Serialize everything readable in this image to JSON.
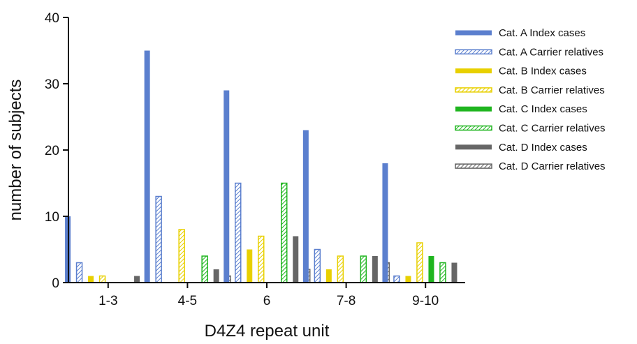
{
  "chart_data": {
    "type": "bar",
    "categories": [
      "1-3",
      "4-5",
      "6",
      "7-8",
      "9-10"
    ],
    "xlabel": "D4Z4 repeat unit",
    "ylabel": "number of subjects",
    "ylim": [
      0,
      40
    ],
    "yticks": [
      0,
      10,
      20,
      30,
      40
    ],
    "grid": false,
    "legend_position": "top-right",
    "series": [
      {
        "name": "Cat. A Index cases",
        "color": "#5b7fce",
        "pattern": "solid",
        "values": [
          10,
          35,
          29,
          23,
          18
        ]
      },
      {
        "name": "Cat. A Carrier relatives",
        "color": "#5b7fce",
        "pattern": "hatched",
        "values": [
          3,
          13,
          15,
          5,
          1
        ]
      },
      {
        "name": "Cat. B Index cases",
        "color": "#e8d000",
        "pattern": "solid",
        "values": [
          1,
          0,
          5,
          2,
          1
        ]
      },
      {
        "name": "Cat. B Carrier relatives",
        "color": "#e8d000",
        "pattern": "hatched",
        "values": [
          1,
          8,
          7,
          4,
          6
        ]
      },
      {
        "name": "Cat. C Index cases",
        "color": "#1fb51f",
        "pattern": "solid",
        "values": [
          0,
          0,
          0,
          0,
          4
        ]
      },
      {
        "name": "Cat. C Carrier relatives",
        "color": "#1fb51f",
        "pattern": "hatched",
        "values": [
          0,
          4,
          15,
          4,
          3
        ]
      },
      {
        "name": "Cat. D Index cases",
        "color": "#666666",
        "pattern": "solid",
        "values": [
          1,
          2,
          7,
          4,
          3
        ]
      },
      {
        "name": "Cat. D Carrier relatives",
        "color": "#666666",
        "pattern": "hatched",
        "values": [
          0,
          1,
          2,
          3,
          0
        ]
      }
    ]
  }
}
